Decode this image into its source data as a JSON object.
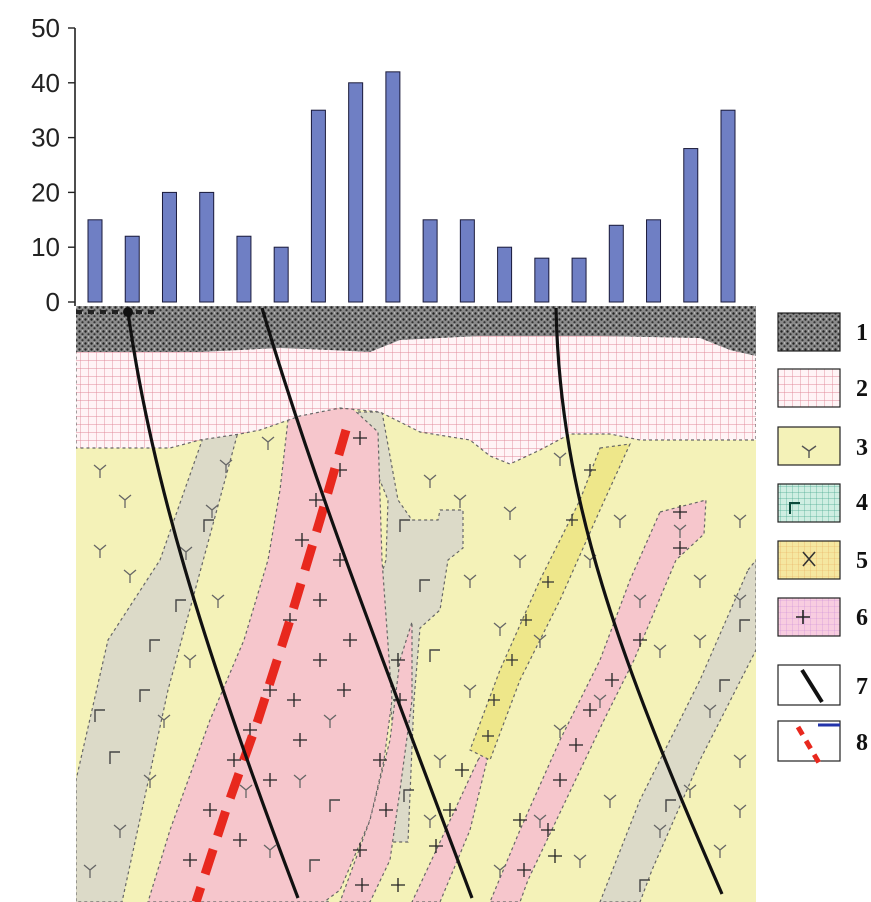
{
  "chart_data": {
    "type": "bar",
    "title": "",
    "xlabel": "",
    "ylabel": "",
    "ylim": [
      0,
      50
    ],
    "yticks": [
      "0",
      "10",
      "20",
      "30",
      "40",
      "50"
    ],
    "grid": false,
    "bar_color": "#6f7fc4",
    "values": [
      15,
      12,
      20,
      20,
      12,
      10,
      35,
      40,
      42,
      15,
      15,
      10,
      8,
      8,
      14,
      15,
      28,
      35
    ]
  },
  "legend": {
    "placement": "right",
    "items": [
      {
        "number": "1",
        "pattern": "dark-gravel"
      },
      {
        "number": "2",
        "pattern": "pink-grid"
      },
      {
        "number": "3",
        "pattern": "yellow-volcanic"
      },
      {
        "number": "4",
        "pattern": "teal-grid"
      },
      {
        "number": "5",
        "pattern": "yellow-cross"
      },
      {
        "number": "6",
        "pattern": "pink-plus"
      },
      {
        "number": "7",
        "pattern": "black-fault-line"
      },
      {
        "number": "8",
        "pattern": "red-dashed-line"
      }
    ]
  },
  "colors": {
    "gravel": "#3a3a3a",
    "pink_grid_bg": "#fff4f6",
    "pink_grid_line": "#e08a9a",
    "yellow_bg": "#f4f2b8",
    "grey_band": "#dcdac8",
    "pink_band": "#f6c6cc",
    "yellow_band": "#eee78a",
    "teal_bg": "#cfeee2",
    "fault": "#111111",
    "red_dash": "#e8281e"
  }
}
